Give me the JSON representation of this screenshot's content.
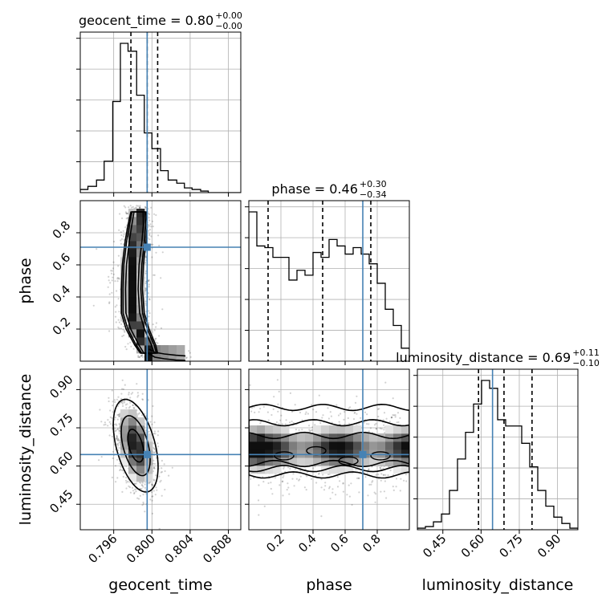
{
  "chart_data": {
    "type": "corner",
    "parameters": [
      "geocent_time",
      "phase",
      "luminosity_distance"
    ],
    "titles": [
      {
        "param": "geocent_time",
        "label": "geocent_time = 0.80",
        "plus": "+0.00",
        "minus": "−0.00",
        "median": 0.7995,
        "q_low": 0.7978,
        "q_high": 0.8006
      },
      {
        "param": "phase",
        "label": "phase = 0.46",
        "plus": "+0.30",
        "minus": "−0.34",
        "median": 0.46,
        "q_low": 0.12,
        "q_high": 0.76
      },
      {
        "param": "luminosity_distance",
        "label": "luminosity_distance = 0.69",
        "plus": "+0.11",
        "minus": "−0.10",
        "median": 0.69,
        "q_low": 0.59,
        "q_high": 0.8
      }
    ],
    "truths": {
      "geocent_time": 0.7995,
      "phase": 0.71,
      "luminosity_distance": 0.645
    },
    "ranges": {
      "geocent_time": [
        0.7925,
        0.8093
      ],
      "phase": [
        0.0,
        1.0
      ],
      "luminosity_distance": [
        0.35,
        0.98
      ]
    },
    "ticks": {
      "geocent_time": [
        0.796,
        0.8,
        0.804,
        0.808
      ],
      "phase": [
        0.2,
        0.4,
        0.6,
        0.8
      ],
      "luminosity_distance": [
        0.45,
        0.6,
        0.75,
        0.9
      ]
    },
    "tick_labels": {
      "geocent_time": [
        "0.796",
        "0.800",
        "0.804",
        "0.808"
      ],
      "phase": [
        "0.2",
        "0.4",
        "0.6",
        "0.8"
      ],
      "luminosity_distance": [
        "0.45",
        "0.60",
        "0.75",
        "0.90"
      ]
    },
    "xlabels": [
      "geocent_time",
      "phase",
      "luminosity_distance"
    ],
    "ylabels": [
      "",
      "phase",
      "luminosity_distance"
    ],
    "histograms": {
      "geocent_time": {
        "bin_edges": [
          0.7925,
          0.7933,
          0.7942,
          0.795,
          0.7959,
          0.7967,
          0.7975,
          0.7984,
          0.7992,
          0.8,
          0.8009,
          0.8017,
          0.8026,
          0.8034,
          0.8042,
          0.8051,
          0.8059,
          0.8068,
          0.8076,
          0.8084,
          0.8093
        ],
        "counts": [
          2,
          4,
          8,
          20,
          58,
          95,
          90,
          62,
          38,
          28,
          14,
          8,
          6,
          3,
          2,
          1,
          0,
          0,
          0,
          0
        ]
      },
      "phase": {
        "bin_edges": [
          0.0,
          0.05,
          0.1,
          0.15,
          0.2,
          0.25,
          0.3,
          0.35,
          0.4,
          0.45,
          0.5,
          0.55,
          0.6,
          0.65,
          0.7,
          0.75,
          0.8,
          0.85,
          0.9,
          0.95,
          1.0
        ],
        "counts": [
          92,
          71,
          70,
          64,
          64,
          50,
          56,
          53,
          67,
          64,
          75,
          71,
          66,
          70,
          66,
          60,
          48,
          32,
          22,
          8
        ]
      },
      "luminosity_distance": {
        "bin_edges": [
          0.35,
          0.3815,
          0.413,
          0.4445,
          0.476,
          0.5075,
          0.539,
          0.5705,
          0.602,
          0.6335,
          0.665,
          0.6965,
          0.728,
          0.7595,
          0.791,
          0.8225,
          0.854,
          0.8855,
          0.917,
          0.9485,
          0.98
        ],
        "counts": [
          1,
          2,
          5,
          10,
          25,
          45,
          62,
          80,
          95,
          90,
          70,
          66,
          66,
          55,
          40,
          25,
          15,
          8,
          4,
          1
        ]
      }
    },
    "contours": {
      "phase_vs_geocent_time": {
        "center_x": 0.7983,
        "level_fractions": [
          0.6,
          0.85,
          1.0
        ],
        "ridge": [
          {
            "y": 0.05,
            "x": 0.7997,
            "halfwidth": 0.0009
          },
          {
            "y": 0.1,
            "x": 0.7993,
            "halfwidth": 0.0011
          },
          {
            "y": 0.2,
            "x": 0.7985,
            "halfwidth": 0.0012
          },
          {
            "y": 0.3,
            "x": 0.798,
            "halfwidth": 0.0012
          },
          {
            "y": 0.45,
            "x": 0.7979,
            "halfwidth": 0.0011
          },
          {
            "y": 0.6,
            "x": 0.798,
            "halfwidth": 0.0011
          },
          {
            "y": 0.75,
            "x": 0.7983,
            "halfwidth": 0.0011
          },
          {
            "y": 0.85,
            "x": 0.7985,
            "halfwidth": 0.001
          },
          {
            "y": 0.93,
            "x": 0.7986,
            "halfwidth": 0.0008
          }
        ],
        "tail": [
          [
            0.7997,
            0.05
          ],
          [
            0.8003,
            0.03
          ],
          [
            0.8013,
            0.02
          ],
          [
            0.8025,
            0.012
          ],
          [
            0.8035,
            0.008
          ]
        ]
      },
      "luminosity_distance_vs_geocent_time": {
        "center": [
          0.7983,
          0.68
        ],
        "sigma": [
          0.0012,
          0.095
        ],
        "tilt": -0.45
      },
      "luminosity_distance_vs_phase": {
        "center_y": 0.67,
        "bands": [
          {
            "level": 1.0,
            "y_low": 0.565,
            "y_high": 0.83
          },
          {
            "level": 0.85,
            "y_low": 0.59,
            "y_high": 0.77
          },
          {
            "level": 0.6,
            "y_low": 0.61,
            "y_high": 0.72
          }
        ]
      }
    }
  }
}
